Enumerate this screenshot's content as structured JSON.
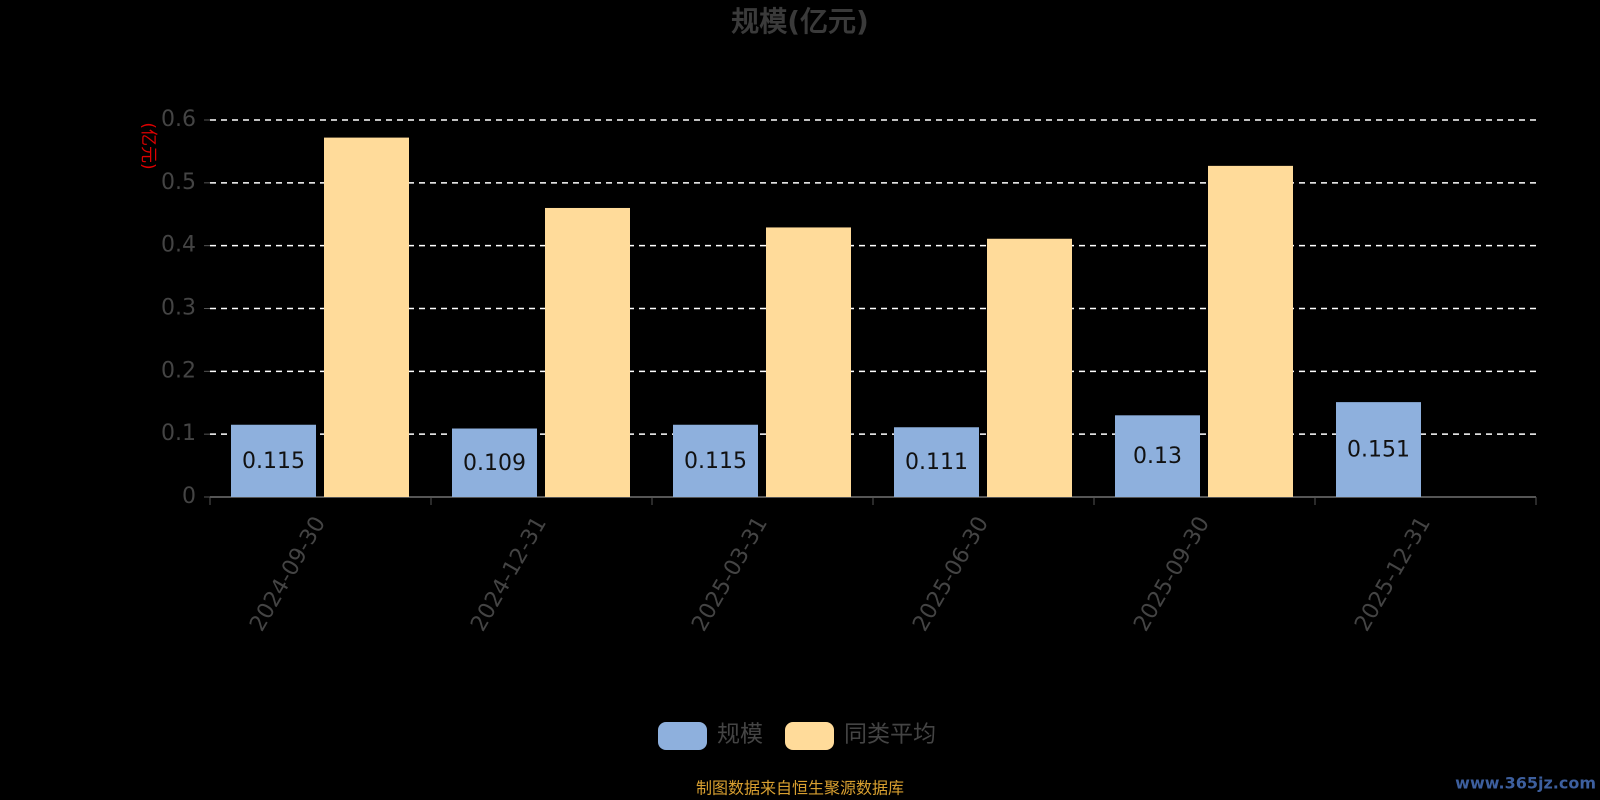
{
  "chart_data": {
    "type": "bar",
    "title": "规模(亿元)",
    "y_label": "(亿元)",
    "categories": [
      "2024-09-30",
      "2024-12-31",
      "2025-03-31",
      "2025-06-30",
      "2025-09-30",
      "2025-12-31"
    ],
    "series": [
      {
        "name": "规模",
        "color": "#8eb0dd",
        "values": [
          0.115,
          0.109,
          0.115,
          0.111,
          0.13,
          0.151
        ]
      },
      {
        "name": "同类平均",
        "color": "#ffdb9a",
        "values": [
          0.572,
          0.46,
          0.429,
          0.411,
          0.527,
          null
        ]
      }
    ],
    "ylim": [
      0,
      0.6
    ],
    "yticks": [
      0,
      0.1,
      0.2,
      0.3,
      0.4,
      0.5,
      0.6
    ],
    "grid": true,
    "source": "制图数据来自恒生聚源数据库",
    "watermark": "www.365jz.com"
  }
}
